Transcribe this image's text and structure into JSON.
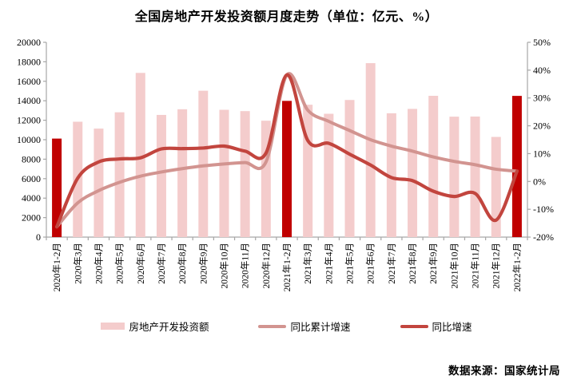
{
  "title": "全国房地产开发投资额月度走势（单位：亿元、%）",
  "source": "数据来源：国家统计局",
  "colors": {
    "bar": "#F4CCCC",
    "bar_highlight": "#C00000",
    "line_cumulative": "#D29490",
    "line_yoy": "#C2453E",
    "axis": "#A6A6A6",
    "text": "#000000"
  },
  "legend": [
    {
      "label": "房地产开发投资额",
      "type": "bar",
      "color": "#F4CCCC"
    },
    {
      "label": "同比累计增速",
      "type": "line",
      "color": "#D29490"
    },
    {
      "label": "同比增速",
      "type": "line",
      "color": "#C2453E"
    }
  ],
  "chart_data": {
    "type": "bar",
    "subtype": "bar-line-combo",
    "title": "全国房地产开发投资额月度走势（单位：亿元、%）",
    "grid": false,
    "legend_position": "bottom",
    "categories": [
      "2020年1-2月",
      "2020年3月",
      "2020年4月",
      "2020年5月",
      "2020年6月",
      "2020年7月",
      "2020年8月",
      "2020年9月",
      "2020年10月",
      "2020年11月",
      "2020年12月",
      "2021年1-2月",
      "2021年3月",
      "2021年4月",
      "2021年5月",
      "2021年6月",
      "2021年7月",
      "2021年8月",
      "2021年9月",
      "2021年10月",
      "2021年11月",
      "2021年12月",
      "2022年1-2月"
    ],
    "series": [
      {
        "name": "房地产开发投资额",
        "type": "bar",
        "axis": "left",
        "unit": "亿元",
        "values": [
          10115,
          11848,
          11140,
          12817,
          16860,
          12545,
          13129,
          15030,
          13072,
          12936,
          11951,
          13986,
          13590,
          12664,
          14078,
          17861,
          12716,
          13165,
          14508,
          12366,
          12380,
          10288,
          14499
        ],
        "highlight_indices": [
          0,
          11,
          22
        ]
      },
      {
        "name": "同比累计增速",
        "type": "line",
        "axis": "right",
        "unit": "%",
        "values": [
          -16.3,
          -7.7,
          -3.3,
          -0.3,
          1.9,
          3.4,
          4.6,
          5.6,
          6.3,
          6.8,
          7.0,
          38.3,
          25.6,
          21.6,
          18.3,
          15.0,
          12.7,
          10.9,
          8.8,
          7.2,
          6.0,
          4.4,
          3.7
        ]
      },
      {
        "name": "同比增速",
        "type": "line",
        "axis": "right",
        "unit": "%",
        "values": [
          -16.3,
          1.2,
          7.0,
          8.1,
          8.5,
          11.7,
          11.8,
          12.0,
          12.7,
          10.9,
          10.2,
          38.3,
          14.7,
          13.7,
          9.8,
          5.9,
          1.4,
          0.3,
          -3.5,
          -5.4,
          -4.3,
          -13.9,
          3.7
        ]
      }
    ],
    "left_axis": {
      "min": 0,
      "max": 20000,
      "step": 2000,
      "ticks": [
        "0",
        "2000",
        "4000",
        "6000",
        "8000",
        "10000",
        "12000",
        "14000",
        "16000",
        "18000",
        "20000"
      ]
    },
    "right_axis": {
      "min": -20,
      "max": 50,
      "step": 10,
      "ticks": [
        "-20%",
        "-10%",
        "0%",
        "10%",
        "20%",
        "30%",
        "40%",
        "50%"
      ]
    }
  }
}
